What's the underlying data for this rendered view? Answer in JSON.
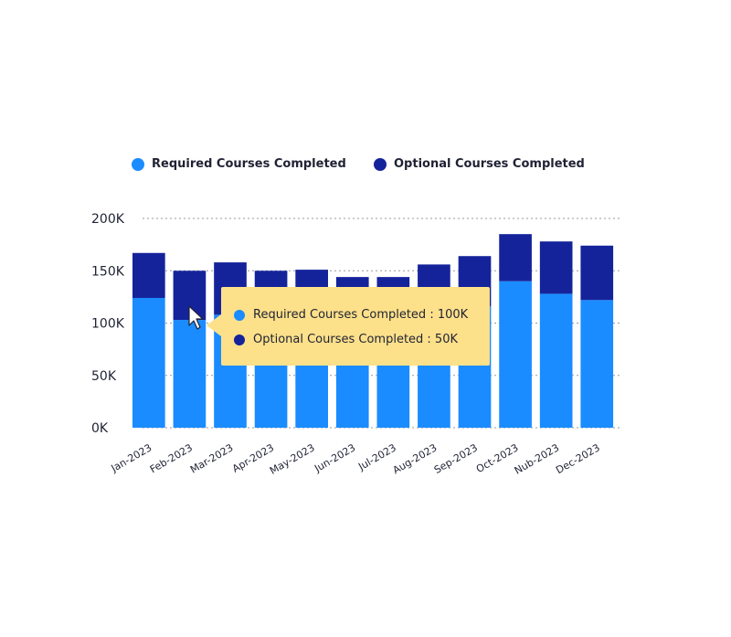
{
  "colors": {
    "required": "#1a8cff",
    "optional": "#15239b",
    "tooltip_bg": "#fde08a",
    "grid": "#9a9a9a"
  },
  "legend": {
    "required_label": "Required Courses Completed",
    "optional_label": "Optional Courses Completed"
  },
  "tooltip": {
    "required_text": "Required Courses Completed : 100K",
    "optional_text": "Optional Courses Completed : 50K"
  },
  "chart_data": {
    "type": "bar",
    "stacked": true,
    "categories": [
      "Jan-2023",
      "Feb-2023",
      "Mar-2023",
      "Apr-2023",
      "May-2023",
      "Jun-2023",
      "Jul-2023",
      "Aug-2023",
      "Sep-2023",
      "Oct-2023",
      "Nub-2023",
      "Dec-2023"
    ],
    "series": [
      {
        "name": "Required Courses Completed",
        "values": [
          124,
          103,
          108,
          105,
          108,
          102,
          104,
          112,
          116,
          140,
          128,
          122
        ]
      },
      {
        "name": "Optional Courses Completed",
        "values": [
          43,
          47,
          50,
          45,
          43,
          42,
          40,
          44,
          48,
          45,
          50,
          52
        ]
      }
    ],
    "y_ticks": [
      "0K",
      "50K",
      "100K",
      "150K",
      "200K"
    ],
    "ylim": [
      0,
      200
    ],
    "grid": true,
    "legend_position": "top"
  }
}
